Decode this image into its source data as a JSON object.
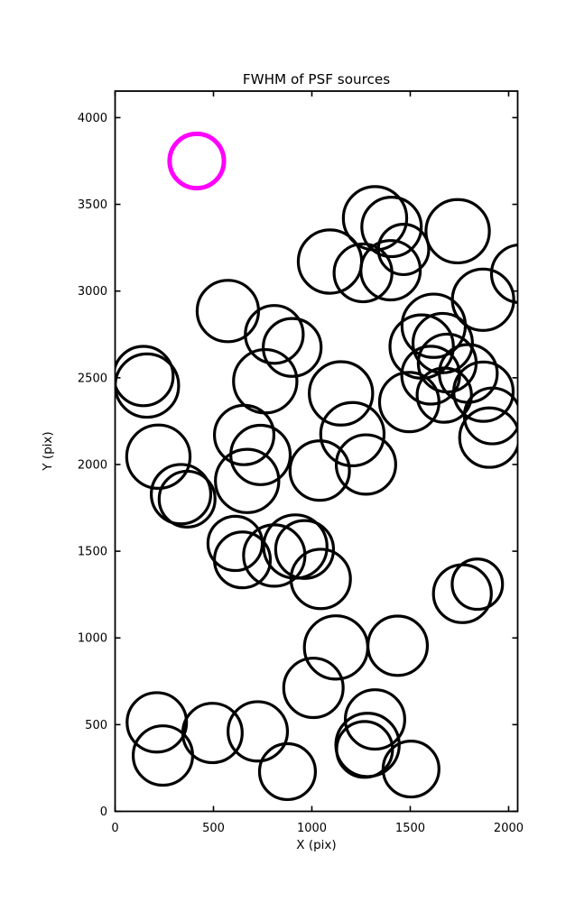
{
  "title": "FWHM of PSF sources",
  "axes": {
    "xlabel": "X (pix)",
    "ylabel": "Y (pix)",
    "x_tick_labels": [
      "0",
      "500",
      "1000",
      "1500",
      "2000"
    ],
    "y_tick_labels": [
      "0",
      "500",
      "1000",
      "1500",
      "2000",
      "2500",
      "3000",
      "3500",
      "4000"
    ],
    "x_ticks": [
      0,
      500,
      1000,
      1500,
      2000
    ],
    "y_ticks": [
      0,
      500,
      1000,
      1500,
      2000,
      2500,
      3000,
      3500,
      4000
    ]
  },
  "colors": {
    "circle": "#000000",
    "highlight": "#ff00ff",
    "background": "#ffffff",
    "axis": "#000000"
  },
  "chart_data": {
    "type": "scatter",
    "title": "FWHM of PSF sources",
    "xlabel": "X (pix)",
    "ylabel": "Y (pix)",
    "x_range": [
      0,
      2046
    ],
    "y_range": [
      0,
      4153
    ],
    "grid": false,
    "legend": "none",
    "marker_style": "open-circle, radius proportional to FWHM",
    "points": [
      {
        "x": 573,
        "y": 2885,
        "r": 156
      },
      {
        "x": 1321,
        "y": 3420,
        "r": 161
      },
      {
        "x": 1405,
        "y": 3370,
        "r": 151
      },
      {
        "x": 1466,
        "y": 3240,
        "r": 128
      },
      {
        "x": 1741,
        "y": 3345,
        "r": 161
      },
      {
        "x": 1092,
        "y": 3170,
        "r": 161
      },
      {
        "x": 1260,
        "y": 3105,
        "r": 147
      },
      {
        "x": 1400,
        "y": 3120,
        "r": 151
      },
      {
        "x": 1870,
        "y": 2950,
        "r": 156
      },
      {
        "x": 2060,
        "y": 3100,
        "r": 147
      },
      {
        "x": 809,
        "y": 2750,
        "r": 147
      },
      {
        "x": 900,
        "y": 2675,
        "r": 147
      },
      {
        "x": 763,
        "y": 2480,
        "r": 161
      },
      {
        "x": 1619,
        "y": 2800,
        "r": 161
      },
      {
        "x": 1558,
        "y": 2680,
        "r": 161
      },
      {
        "x": 1665,
        "y": 2700,
        "r": 151
      },
      {
        "x": 1688,
        "y": 2585,
        "r": 147
      },
      {
        "x": 1604,
        "y": 2515,
        "r": 147
      },
      {
        "x": 1795,
        "y": 2525,
        "r": 147
      },
      {
        "x": 1673,
        "y": 2400,
        "r": 138
      },
      {
        "x": 1872,
        "y": 2420,
        "r": 151
      },
      {
        "x": 1917,
        "y": 2280,
        "r": 142
      },
      {
        "x": 1902,
        "y": 2155,
        "r": 151
      },
      {
        "x": 144,
        "y": 2510,
        "r": 151
      },
      {
        "x": 162,
        "y": 2455,
        "r": 161
      },
      {
        "x": 1148,
        "y": 2410,
        "r": 161
      },
      {
        "x": 1495,
        "y": 2360,
        "r": 151
      },
      {
        "x": 1206,
        "y": 2175,
        "r": 161
      },
      {
        "x": 1275,
        "y": 2000,
        "r": 151
      },
      {
        "x": 1040,
        "y": 1965,
        "r": 151
      },
      {
        "x": 656,
        "y": 2170,
        "r": 151
      },
      {
        "x": 739,
        "y": 2055,
        "r": 151
      },
      {
        "x": 671,
        "y": 1905,
        "r": 161
      },
      {
        "x": 220,
        "y": 2045,
        "r": 161
      },
      {
        "x": 335,
        "y": 1829,
        "r": 151
      },
      {
        "x": 366,
        "y": 1800,
        "r": 142
      },
      {
        "x": 610,
        "y": 1545,
        "r": 138
      },
      {
        "x": 647,
        "y": 1450,
        "r": 142
      },
      {
        "x": 809,
        "y": 1475,
        "r": 156
      },
      {
        "x": 916,
        "y": 1527,
        "r": 161
      },
      {
        "x": 963,
        "y": 1510,
        "r": 147
      },
      {
        "x": 1045,
        "y": 1340,
        "r": 151
      },
      {
        "x": 1123,
        "y": 945,
        "r": 161
      },
      {
        "x": 1436,
        "y": 955,
        "r": 151
      },
      {
        "x": 1008,
        "y": 712,
        "r": 151
      },
      {
        "x": 1321,
        "y": 530,
        "r": 151
      },
      {
        "x": 1283,
        "y": 383,
        "r": 161
      },
      {
        "x": 1268,
        "y": 357,
        "r": 142
      },
      {
        "x": 1504,
        "y": 244,
        "r": 142
      },
      {
        "x": 1765,
        "y": 1255,
        "r": 147
      },
      {
        "x": 1841,
        "y": 1310,
        "r": 128
      },
      {
        "x": 212,
        "y": 513,
        "r": 151
      },
      {
        "x": 243,
        "y": 322,
        "r": 151
      },
      {
        "x": 495,
        "y": 452,
        "r": 151
      },
      {
        "x": 725,
        "y": 461,
        "r": 151
      },
      {
        "x": 876,
        "y": 229,
        "r": 142
      }
    ],
    "highlight_point": {
      "x": 415,
      "y": 3750,
      "r": 138,
      "color": "#ff00ff"
    }
  }
}
